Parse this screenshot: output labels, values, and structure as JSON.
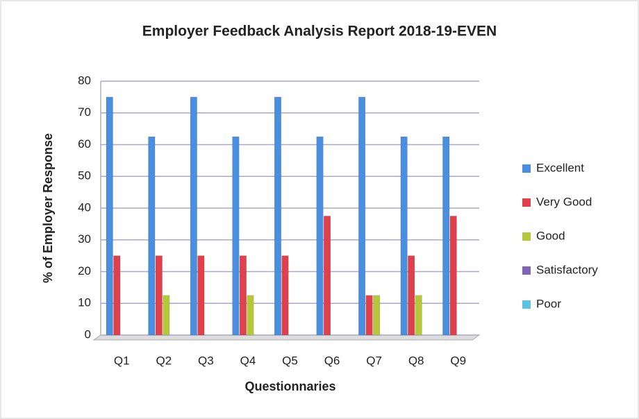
{
  "chart_data": {
    "type": "bar",
    "title": "Employer Feedback Analysis Report 2018-19-EVEN",
    "x_label": "Questionnaries",
    "y_label": "% of Employer Response",
    "categories": [
      "Q1",
      "Q2",
      "Q3",
      "Q4",
      "Q5",
      "Q6",
      "Q7",
      "Q8",
      "Q9"
    ],
    "series": [
      {
        "name": "Excellent",
        "color": "#4a8ee0",
        "values": [
          75,
          62.5,
          75,
          62.5,
          75,
          62.5,
          75,
          62.5,
          62.5
        ]
      },
      {
        "name": "Very Good",
        "color": "#e0404c",
        "values": [
          25,
          25,
          25,
          25,
          25,
          37.5,
          12.5,
          25,
          37.5
        ]
      },
      {
        "name": "Good",
        "color": "#b5c83a",
        "values": [
          0,
          12.5,
          0,
          12.5,
          0,
          0,
          12.5,
          12.5,
          0
        ]
      },
      {
        "name": "Satisfactory",
        "color": "#8066b0",
        "values": [
          0,
          0,
          0,
          0,
          0,
          0,
          0,
          0,
          0
        ]
      },
      {
        "name": "Poor",
        "color": "#5cc4e0",
        "values": [
          0,
          0,
          0,
          0,
          0,
          0,
          0,
          0,
          0
        ]
      }
    ],
    "ylim": [
      0,
      80
    ],
    "yticks": [
      0,
      10,
      20,
      30,
      40,
      50,
      60,
      70,
      80
    ],
    "grid": true,
    "legend": "right"
  }
}
